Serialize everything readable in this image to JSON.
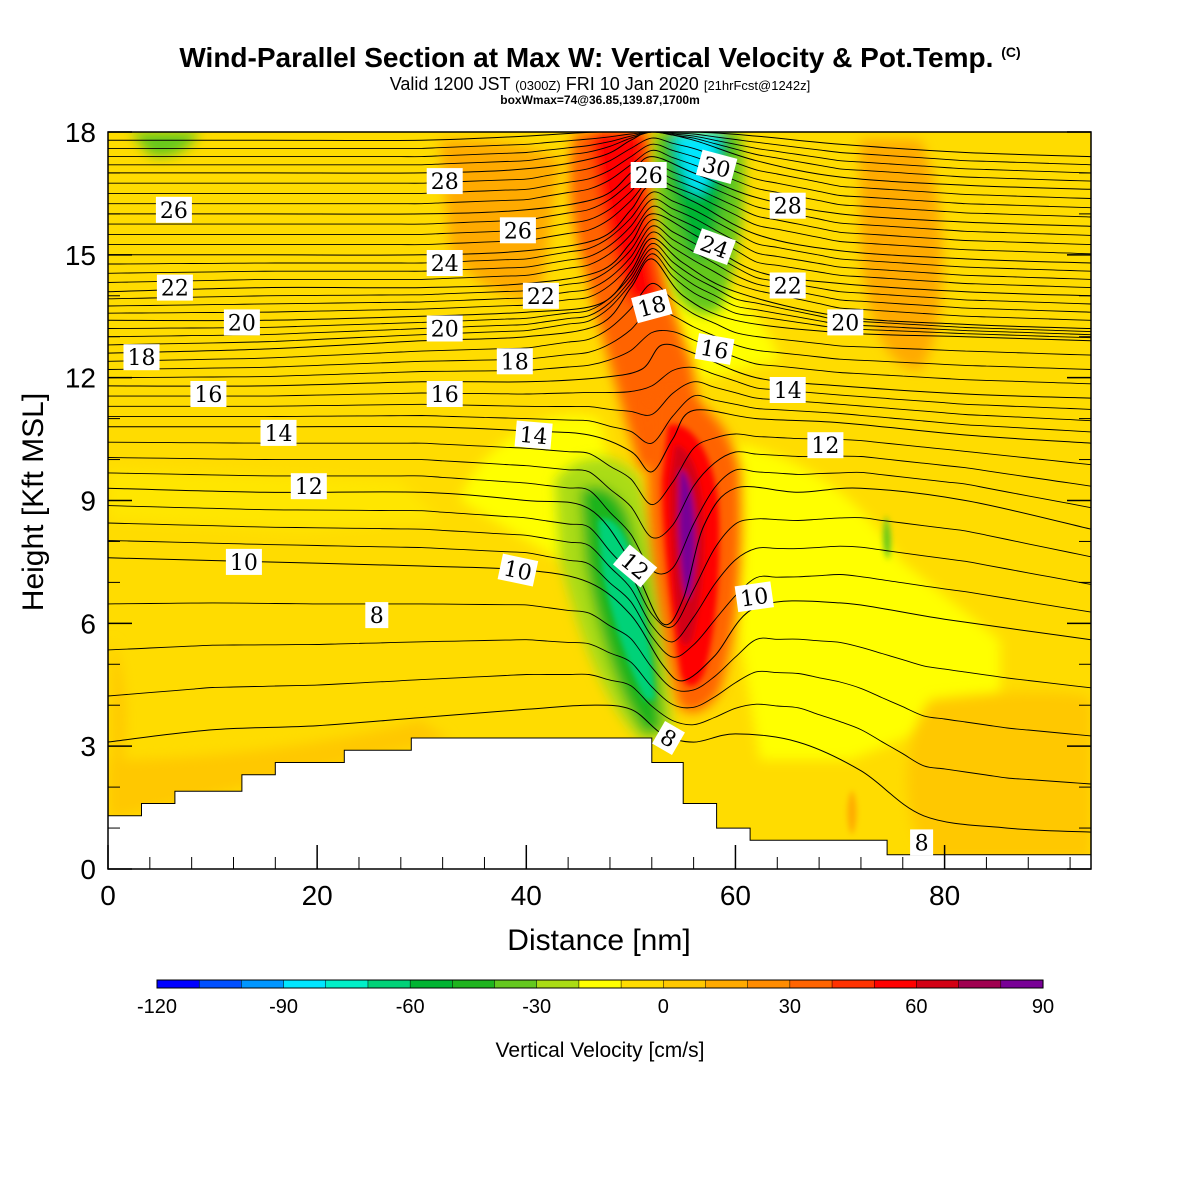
{
  "header": {
    "title": "Wind-Parallel Section at Max W: Vertical Velocity & Pot.Temp.",
    "title_mark": "(C)",
    "valid_prefix": "Valid 1200 JST",
    "valid_utc": "(0300Z)",
    "valid_date": "FRI 10 Jan 2020",
    "forecast": "[21hrFcst@1242z]",
    "box_info": "boxWmax=74@36.85,139.87,1700m"
  },
  "chart_data": {
    "type": "heatmap",
    "xlabel": "Distance [nm]",
    "ylabel": "Height [Kft MSL]",
    "xlim": [
      0,
      94
    ],
    "ylim": [
      0,
      18
    ],
    "x_ticks": [
      0,
      20,
      40,
      60,
      80
    ],
    "y_ticks": [
      0,
      3,
      6,
      9,
      12,
      15,
      18
    ],
    "colorbar": {
      "label": "Vertical Velocity [cm/s]",
      "range": [
        -120,
        90
      ],
      "tick_values": [
        -120,
        -90,
        -60,
        -30,
        0,
        30,
        60,
        90
      ],
      "tick_labels": [
        "-120",
        "-90",
        "-60",
        "-30",
        "0",
        "30",
        "60",
        "90"
      ],
      "colors": [
        "#0000ff",
        "#0050ff",
        "#0096ff",
        "#00e6ff",
        "#00f0c8",
        "#00d278",
        "#00b432",
        "#1eb41e",
        "#64c81e",
        "#aadc14",
        "#ffff00",
        "#ffdc00",
        "#ffc800",
        "#ffaa00",
        "#ff8c00",
        "#ff6400",
        "#ff3200",
        "#ff0000",
        "#d20014",
        "#a00050",
        "#780096"
      ]
    },
    "terrain": [
      [
        0,
        1.3
      ],
      [
        3.2,
        1.3
      ],
      [
        3.2,
        1.6
      ],
      [
        6.4,
        1.6
      ],
      [
        6.4,
        1.9
      ],
      [
        12.8,
        1.9
      ],
      [
        12.8,
        2.3
      ],
      [
        16.0,
        2.3
      ],
      [
        16.0,
        2.6
      ],
      [
        22.6,
        2.6
      ],
      [
        22.6,
        2.9
      ],
      [
        29.0,
        2.9
      ],
      [
        29.0,
        3.2
      ],
      [
        52.0,
        3.2
      ],
      [
        52.0,
        2.6
      ],
      [
        55.0,
        2.6
      ],
      [
        55.0,
        1.6
      ],
      [
        58.2,
        1.6
      ],
      [
        58.2,
        1.0
      ],
      [
        61.4,
        1.0
      ],
      [
        61.4,
        0.7
      ],
      [
        74.5,
        0.7
      ],
      [
        74.5,
        0.35
      ],
      [
        94,
        0.35
      ]
    ],
    "theta_isolines": [
      {
        "label": "8",
        "pts": [
          [
            0,
            3.1
          ],
          [
            10,
            3.4
          ],
          [
            20,
            3.5
          ],
          [
            30,
            3.7
          ],
          [
            40,
            3.9
          ],
          [
            46,
            4.0
          ],
          [
            50,
            3.9
          ],
          [
            53,
            3.3
          ],
          [
            56,
            3.1
          ],
          [
            60,
            3.3
          ],
          [
            66,
            3.1
          ],
          [
            72,
            2.4
          ],
          [
            78,
            1.3
          ],
          [
            86,
            1.0
          ],
          [
            94,
            0.9
          ]
        ]
      },
      {
        "label": "10",
        "pts": [
          [
            0,
            7.6
          ],
          [
            15,
            7.5
          ],
          [
            30,
            7.4
          ],
          [
            40,
            7.3
          ],
          [
            46,
            7.0
          ],
          [
            50,
            6.2
          ],
          [
            53,
            5.0
          ],
          [
            55,
            4.6
          ],
          [
            58,
            5.2
          ],
          [
            62,
            6.4
          ],
          [
            70,
            6.5
          ],
          [
            80,
            6.1
          ],
          [
            94,
            5.6
          ]
        ]
      },
      {
        "label": "12",
        "pts": [
          [
            0,
            9.3
          ],
          [
            15,
            9.2
          ],
          [
            30,
            9.2
          ],
          [
            40,
            9.0
          ],
          [
            46,
            8.8
          ],
          [
            50,
            7.5
          ],
          [
            53,
            6.0
          ],
          [
            55,
            6.6
          ],
          [
            57,
            8.4
          ],
          [
            60,
            9.3
          ],
          [
            66,
            9.2
          ],
          [
            72,
            9.3
          ],
          [
            82,
            9.0
          ],
          [
            94,
            8.3
          ]
        ]
      },
      {
        "label": "14",
        "pts": [
          [
            0,
            10.8
          ],
          [
            15,
            10.8
          ],
          [
            30,
            10.8
          ],
          [
            40,
            10.7
          ],
          [
            46,
            10.6
          ],
          [
            50,
            10.2
          ],
          [
            52,
            9.7
          ],
          [
            54,
            10.5
          ],
          [
            56,
            11.2
          ],
          [
            62,
            11.0
          ],
          [
            70,
            10.9
          ],
          [
            82,
            10.6
          ],
          [
            94,
            10.4
          ]
        ]
      },
      {
        "label": "16",
        "pts": [
          [
            0,
            11.8
          ],
          [
            15,
            11.8
          ],
          [
            30,
            11.9
          ],
          [
            40,
            11.9
          ],
          [
            47,
            12.0
          ],
          [
            51,
            12.2
          ],
          [
            53,
            12.8
          ],
          [
            56,
            12.6
          ],
          [
            62,
            12.0
          ],
          [
            70,
            11.8
          ],
          [
            82,
            11.6
          ],
          [
            94,
            11.5
          ]
        ]
      },
      {
        "label": "18",
        "pts": [
          [
            0,
            12.6
          ],
          [
            15,
            12.7
          ],
          [
            30,
            12.9
          ],
          [
            40,
            13.0
          ],
          [
            47,
            13.3
          ],
          [
            50,
            14.2
          ],
          [
            52,
            14.9
          ],
          [
            55,
            14.0
          ],
          [
            60,
            13.4
          ],
          [
            70,
            13.1
          ],
          [
            82,
            13.0
          ],
          [
            94,
            12.9
          ]
        ]
      },
      {
        "label": "20",
        "pts": [
          [
            0,
            13.4
          ],
          [
            15,
            13.4
          ],
          [
            30,
            13.5
          ],
          [
            40,
            13.6
          ],
          [
            47,
            13.8
          ],
          [
            50,
            14.6
          ],
          [
            52,
            15.4
          ],
          [
            55,
            14.8
          ],
          [
            60,
            14.1
          ],
          [
            70,
            13.5
          ],
          [
            82,
            13.3
          ],
          [
            94,
            13.2
          ]
        ]
      },
      {
        "label": "22",
        "pts": [
          [
            0,
            14.1
          ],
          [
            15,
            14.2
          ],
          [
            30,
            14.2
          ],
          [
            40,
            14.3
          ],
          [
            47,
            14.6
          ],
          [
            50,
            15.3
          ],
          [
            52,
            16.0
          ],
          [
            56,
            15.5
          ],
          [
            62,
            14.6
          ],
          [
            70,
            14.3
          ],
          [
            82,
            14.1
          ],
          [
            94,
            14.0
          ]
        ]
      },
      {
        "label": "24",
        "pts": [
          [
            0,
            15.0
          ],
          [
            15,
            15.0
          ],
          [
            30,
            15.0
          ],
          [
            40,
            15.1
          ],
          [
            47,
            15.4
          ],
          [
            50,
            16.1
          ],
          [
            52,
            16.7
          ],
          [
            56,
            16.3
          ],
          [
            62,
            15.5
          ],
          [
            70,
            15.1
          ],
          [
            82,
            14.9
          ],
          [
            94,
            14.8
          ]
        ]
      },
      {
        "label": "26",
        "pts": [
          [
            0,
            16.0
          ],
          [
            15,
            16.0
          ],
          [
            30,
            16.0
          ],
          [
            40,
            16.1
          ],
          [
            47,
            16.4
          ],
          [
            50,
            17.0
          ],
          [
            52,
            17.4
          ],
          [
            56,
            17.0
          ],
          [
            62,
            16.4
          ],
          [
            70,
            16.0
          ],
          [
            82,
            15.8
          ],
          [
            94,
            15.7
          ]
        ]
      },
      {
        "label": "28",
        "pts": [
          [
            0,
            17.0
          ],
          [
            15,
            17.0
          ],
          [
            30,
            17.0
          ],
          [
            40,
            17.1
          ],
          [
            47,
            17.4
          ],
          [
            50,
            17.8
          ],
          [
            52,
            18.0
          ],
          [
            56,
            17.8
          ],
          [
            62,
            17.3
          ],
          [
            70,
            16.9
          ],
          [
            82,
            16.7
          ],
          [
            94,
            16.6
          ]
        ]
      },
      {
        "label": "30",
        "pts": [
          [
            0,
            17.8
          ],
          [
            15,
            17.8
          ],
          [
            30,
            17.8
          ],
          [
            40,
            17.9
          ],
          [
            47,
            18.0
          ],
          [
            56,
            18.0
          ],
          [
            62,
            17.9
          ],
          [
            70,
            17.7
          ],
          [
            82,
            17.5
          ],
          [
            94,
            17.4
          ]
        ]
      }
    ],
    "contour_labels": [
      {
        "text": "26",
        "x": 6.3,
        "y": 16.1,
        "rot": 0
      },
      {
        "text": "28",
        "x": 32.2,
        "y": 16.8,
        "rot": 0
      },
      {
        "text": "26",
        "x": 39.2,
        "y": 15.6,
        "rot": 0
      },
      {
        "text": "26",
        "x": 51.7,
        "y": 16.95,
        "rot": 0
      },
      {
        "text": "30",
        "x": 58.2,
        "y": 17.15,
        "rot": 15
      },
      {
        "text": "28",
        "x": 65.0,
        "y": 16.2,
        "rot": 0
      },
      {
        "text": "24",
        "x": 58.0,
        "y": 15.2,
        "rot": 20
      },
      {
        "text": "24",
        "x": 32.2,
        "y": 14.8,
        "rot": 0
      },
      {
        "text": "22",
        "x": 6.4,
        "y": 14.2,
        "rot": 0
      },
      {
        "text": "22",
        "x": 41.4,
        "y": 14.0,
        "rot": 0
      },
      {
        "text": "22",
        "x": 65.0,
        "y": 14.25,
        "rot": 0
      },
      {
        "text": "18",
        "x": 52.0,
        "y": 13.75,
        "rot": -15
      },
      {
        "text": "20",
        "x": 12.8,
        "y": 13.35,
        "rot": 0
      },
      {
        "text": "20",
        "x": 32.2,
        "y": 13.2,
        "rot": 0
      },
      {
        "text": "20",
        "x": 70.5,
        "y": 13.35,
        "rot": 0
      },
      {
        "text": "16",
        "x": 58.0,
        "y": 12.7,
        "rot": 10
      },
      {
        "text": "18",
        "x": 3.2,
        "y": 12.5,
        "rot": 0
      },
      {
        "text": "18",
        "x": 38.9,
        "y": 12.4,
        "rot": 0
      },
      {
        "text": "14",
        "x": 65.0,
        "y": 11.7,
        "rot": 0
      },
      {
        "text": "16",
        "x": 9.6,
        "y": 11.6,
        "rot": 0
      },
      {
        "text": "16",
        "x": 32.2,
        "y": 11.6,
        "rot": 0
      },
      {
        "text": "14",
        "x": 16.3,
        "y": 10.65,
        "rot": 0
      },
      {
        "text": "14",
        "x": 40.7,
        "y": 10.6,
        "rot": 5
      },
      {
        "text": "12",
        "x": 68.6,
        "y": 10.35,
        "rot": 0
      },
      {
        "text": "12",
        "x": 19.2,
        "y": 9.35,
        "rot": 0
      },
      {
        "text": "12",
        "x": 50.4,
        "y": 7.4,
        "rot": 40
      },
      {
        "text": "10",
        "x": 13.0,
        "y": 7.5,
        "rot": 0
      },
      {
        "text": "10",
        "x": 39.2,
        "y": 7.3,
        "rot": 12
      },
      {
        "text": "10",
        "x": 61.8,
        "y": 6.65,
        "rot": -8
      },
      {
        "text": "8",
        "x": 25.7,
        "y": 6.2,
        "rot": 0
      },
      {
        "text": "8",
        "x": 53.6,
        "y": 3.2,
        "rot": 30
      },
      {
        "text": "8",
        "x": 77.8,
        "y": 0.65,
        "rot": 0
      }
    ]
  }
}
